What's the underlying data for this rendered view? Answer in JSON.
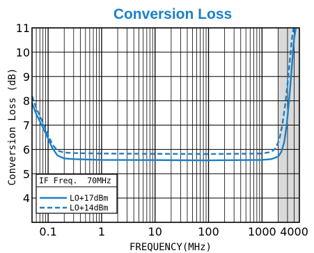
{
  "chart_data": {
    "type": "line",
    "title": "Conversion Loss",
    "xlabel": "FREQUENCY(MHz)",
    "ylabel": "Conversion Loss (dB)",
    "xscale": "log",
    "xlim": [
      0.05,
      5000
    ],
    "ylim": [
      3,
      11
    ],
    "x_tick_labels": [
      {
        "value": 0.1,
        "label": "0.1"
      },
      {
        "value": 1,
        "label": "1"
      },
      {
        "value": 10,
        "label": "10"
      },
      {
        "value": 100,
        "label": "100"
      },
      {
        "value": 1000,
        "label": "1000"
      },
      {
        "value": 4000,
        "label": "4000"
      }
    ],
    "y_tick_labels": [
      4,
      5,
      6,
      7,
      8,
      9,
      10,
      11
    ],
    "grid": true,
    "shaded_region_x": [
      2000,
      5000
    ],
    "legend": {
      "placement": "bottom-left",
      "header": "IF Freq.  70MHz",
      "entries": [
        {
          "label": "LO+17dBm",
          "style": "solid"
        },
        {
          "label": "LO+14dBm",
          "style": "dashed"
        }
      ]
    },
    "series": [
      {
        "name": "LO+17dBm",
        "style": "solid",
        "color": "#1a7fc9",
        "x": [
          0.05,
          0.06,
          0.08,
          0.1,
          0.12,
          0.15,
          0.2,
          0.3,
          1,
          10,
          100,
          1000,
          1500,
          2000,
          2300,
          2600,
          2900,
          3200,
          3500,
          3800,
          4000,
          4300
        ],
        "y": [
          7.9,
          7.45,
          6.9,
          6.45,
          6.05,
          5.75,
          5.63,
          5.6,
          5.57,
          5.56,
          5.55,
          5.57,
          5.6,
          5.7,
          5.9,
          6.3,
          7.0,
          8.0,
          9.0,
          10.0,
          10.6,
          11.0
        ]
      },
      {
        "name": "LO+14dBm",
        "style": "dashed",
        "color": "#1a7fc9",
        "x": [
          0.05,
          0.06,
          0.08,
          0.1,
          0.12,
          0.15,
          0.2,
          0.3,
          1,
          10,
          100,
          1000,
          1500,
          1800,
          2100,
          2400,
          2700,
          3000,
          3300,
          3600,
          3900
        ],
        "y": [
          8.2,
          7.7,
          7.1,
          6.6,
          6.2,
          5.95,
          5.87,
          5.85,
          5.83,
          5.82,
          5.81,
          5.83,
          5.9,
          6.05,
          6.4,
          7.0,
          7.8,
          8.7,
          9.6,
          10.5,
          11.0
        ]
      }
    ]
  }
}
